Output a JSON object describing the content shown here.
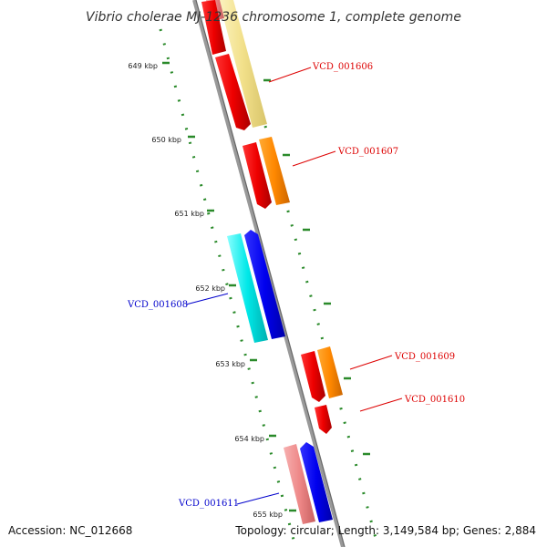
{
  "title": "Vibrio cholerae MJ-1236 chromosome 1, complete genome",
  "ticks": [
    "649 kbp",
    "650 kbp",
    "651 kbp",
    "652 kbp",
    "653 kbp",
    "654 kbp",
    "655 kbp"
  ],
  "genes": [
    {
      "id": "VCD_001606",
      "color": "#dd0000"
    },
    {
      "id": "VCD_001607",
      "color": "#dd0000"
    },
    {
      "id": "VCD_001608",
      "color": "#0000cc"
    },
    {
      "id": "VCD_001609",
      "color": "#dd0000"
    },
    {
      "id": "VCD_001610",
      "color": "#dd0000"
    },
    {
      "id": "VCD_001611",
      "color": "#0000cc"
    }
  ],
  "footer": {
    "accession": "Accession: NC_012668",
    "summary": "Topology: circular; Length: 3,149,584 bp; Genes: 2,884"
  },
  "colors": {
    "backbone": "#888888",
    "tick_dots": "#2a8a2a",
    "cds_forward": "#ff0000",
    "cds_reverse": "#0000ff",
    "feature_orange": "#ff9900",
    "feature_cyan": "#00e5e5",
    "feature_yellow": "#f2e08a",
    "feature_pink": "#ee8888"
  }
}
